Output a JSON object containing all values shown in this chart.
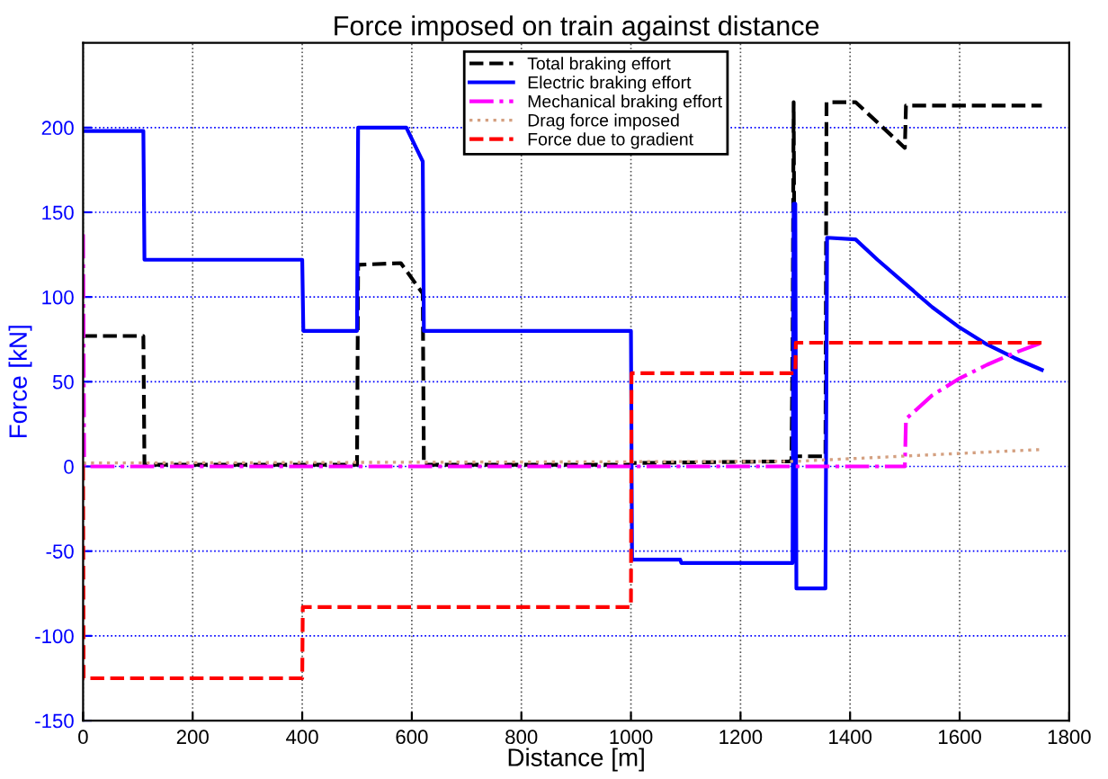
{
  "chart_data": {
    "type": "line",
    "title": "Force imposed on train against distance",
    "xlabel": "Distance [m]",
    "ylabel": "Force [kN]",
    "xlim": [
      0,
      1800
    ],
    "ylim": [
      -150,
      250
    ],
    "xticks": [
      0,
      200,
      400,
      600,
      800,
      1000,
      1200,
      1400,
      1600,
      1800
    ],
    "yticks": [
      -150,
      -100,
      -50,
      0,
      50,
      100,
      150,
      200
    ],
    "grid": true,
    "legend": "top",
    "marker": "none",
    "series": [
      {
        "name": "Total braking effort",
        "color": "#000000",
        "line_style": "dashed",
        "x": [
          0,
          110,
          112,
          500,
          502,
          580,
          620,
          622,
          1000,
          1002,
          1290,
          1293,
          1295,
          1297,
          1300,
          1355,
          1357,
          1410,
          1500,
          1502,
          1750
        ],
        "values": [
          77,
          77,
          1,
          1,
          119,
          120,
          102,
          1,
          1,
          2,
          3,
          4,
          70,
          215,
          6,
          6,
          215,
          215,
          188,
          213,
          213
        ]
      },
      {
        "name": "Electric braking effort",
        "color": "#0000ff",
        "line_style": "solid",
        "x": [
          0,
          110,
          112,
          400,
          402,
          500,
          502,
          590,
          620,
          622,
          1000,
          1002,
          1090,
          1092,
          1295,
          1297,
          1300,
          1302,
          1355,
          1358,
          1410,
          1450,
          1500,
          1550,
          1600,
          1650,
          1700,
          1750
        ],
        "values": [
          198,
          198,
          122,
          122,
          80,
          80,
          200,
          200,
          180,
          80,
          80,
          -55,
          -55,
          -57,
          -57,
          155,
          155,
          -72,
          -72,
          135,
          134,
          122,
          108,
          94,
          82,
          72,
          64,
          57
        ]
      },
      {
        "name": "Mechanical braking effort",
        "color": "#ff00ff",
        "line_style": "dashdot",
        "x": [
          0,
          2,
          1500,
          1502,
          1550,
          1600,
          1650,
          1700,
          1750
        ],
        "values": [
          137,
          0,
          0,
          28,
          42,
          52,
          60,
          67,
          73
        ]
      },
      {
        "name": "Drag force imposed",
        "color": "#d4a080",
        "line_style": "dotted",
        "x": [
          0,
          1300,
          1750
        ],
        "values": [
          2,
          3,
          10
        ]
      },
      {
        "name": "Force due to gradient",
        "color": "#ff0000",
        "line_style": "dashed",
        "x": [
          0,
          1,
          400,
          401,
          1000,
          1001,
          1300,
          1301,
          1750
        ],
        "values": [
          0,
          -125,
          -125,
          -83,
          -83,
          55,
          55,
          73,
          73
        ]
      }
    ]
  }
}
